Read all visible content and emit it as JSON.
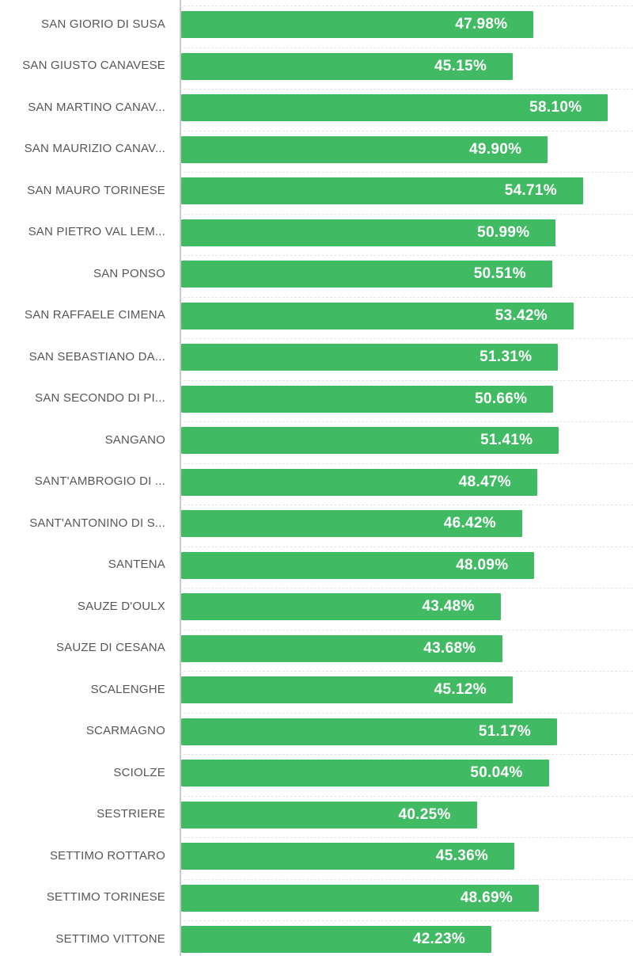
{
  "chart_data": {
    "type": "bar",
    "orientation": "horizontal",
    "title": "",
    "xlabel": "",
    "ylabel": "",
    "xlim": [
      0,
      61.5
    ],
    "grid": "dashed horizontal row separators",
    "legend_position": "none",
    "value_label_position": "inside-bar-right",
    "categories": [
      "SAN GIORIO DI SUSA",
      "SAN GIUSTO CANAVESE",
      "SAN MARTINO CANAV...",
      "SAN MAURIZIO CANAV...",
      "SAN MAURO TORINESE",
      "SAN PIETRO VAL LEM...",
      "SAN PONSO",
      "SAN RAFFAELE CIMENA",
      "SAN SEBASTIANO DA...",
      "SAN SECONDO DI PI...",
      "SANGANO",
      "SANT'AMBROGIO DI ...",
      "SANT'ANTONINO DI S...",
      "SANTENA",
      "SAUZE D'OULX",
      "SAUZE DI CESANA",
      "SCALENGHE",
      "SCARMAGNO",
      "SCIOLZE",
      "SESTRIERE",
      "SETTIMO ROTTARO",
      "SETTIMO TORINESE",
      "SETTIMO VITTONE"
    ],
    "values": [
      47.98,
      45.15,
      58.1,
      49.9,
      54.71,
      50.99,
      50.51,
      53.42,
      51.31,
      50.66,
      51.41,
      48.47,
      46.42,
      48.09,
      43.48,
      43.68,
      45.12,
      51.17,
      50.04,
      40.25,
      45.36,
      48.69,
      42.23
    ],
    "value_labels": [
      "47.98%",
      "45.15%",
      "58.10%",
      "49.90%",
      "54.71%",
      "50.99%",
      "50.51%",
      "53.42%",
      "51.31%",
      "50.66%",
      "51.41%",
      "48.47%",
      "46.42%",
      "48.09%",
      "43.48%",
      "43.68%",
      "45.12%",
      "51.17%",
      "50.04%",
      "40.25%",
      "45.36%",
      "48.69%",
      "42.23%"
    ],
    "style": {
      "bar_color": "#41bb63",
      "value_label_color": "#ffffff",
      "category_label_color": "#56575b",
      "axis_line_color": "#c9c9c9",
      "gridline_color": "#e4e4e4",
      "background_color": "#ffffff"
    }
  }
}
